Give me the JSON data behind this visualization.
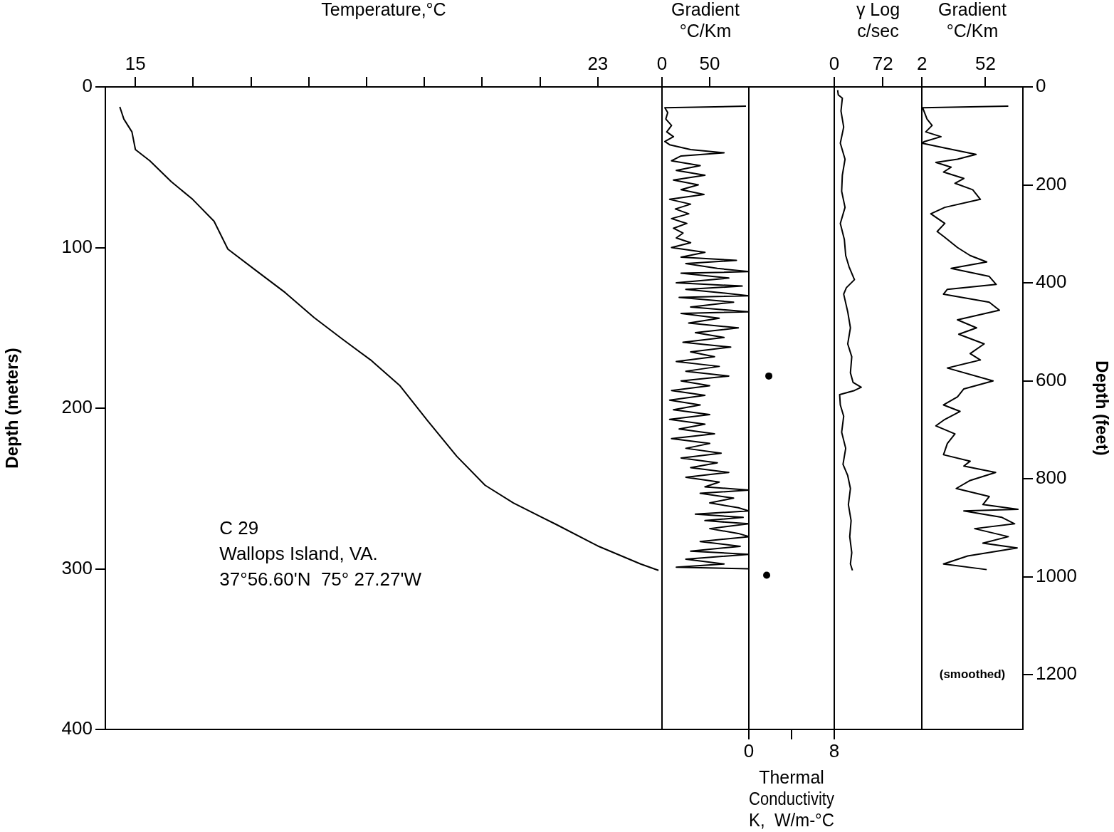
{
  "chart_data": [
    {
      "type": "line",
      "xlabel": "Temperature,°C",
      "ylabel": "Depth (meters)",
      "xlim": [
        14.48,
        24.11
      ],
      "xticks": [
        15,
        {
          "value": 16,
          "label": null
        },
        {
          "value": 17,
          "label": null
        },
        {
          "value": 18,
          "label": null
        },
        {
          "value": 19,
          "label": null
        },
        {
          "value": 20,
          "label": null
        },
        {
          "value": 21,
          "label": null
        },
        {
          "value": 22,
          "label": null
        },
        23
      ],
      "ylim": [
        400,
        0
      ],
      "yticks": [
        0,
        100,
        200,
        300,
        400
      ],
      "annotations": [
        "C 29",
        "Wallops Island, VA.",
        "37°56.60'N  75° 27.27'W"
      ],
      "series": [
        {
          "color": "#000000",
          "x": [
            14.73,
            14.8,
            14.94,
            15.0,
            15.25,
            15.62,
            15.99,
            16.36,
            16.6,
            17.1,
            17.59,
            18.09,
            18.58,
            19.07,
            19.57,
            20.06,
            20.56,
            21.05,
            21.54,
            22.28,
            23.0,
            23.74,
            24.05
          ],
          "values": [
            12.4,
            20,
            28,
            39,
            46,
            59,
            70,
            83.6,
            101,
            114.7,
            128,
            143.6,
            157,
            170,
            185.8,
            208,
            230,
            248,
            259,
            272.4,
            285.8,
            297,
            301
          ]
        }
      ]
    },
    {
      "type": "line",
      "xlabel": "Gradient\n°C/Km",
      "xlim": [
        0,
        91
      ],
      "xticks": [
        0,
        50
      ],
      "ylim": [
        400,
        0
      ],
      "tick_labels": "x",
      "series": [
        {
          "color": "#000000",
          "x": [
            88,
            3,
            6,
            4,
            10,
            5,
            12,
            3,
            8,
            30,
            65,
            20,
            10,
            40,
            15,
            45,
            12,
            38,
            20,
            44,
            8,
            30,
            14,
            28,
            10,
            26,
            12,
            22,
            15,
            30,
            10,
            45,
            20,
            78,
            25,
            58,
            91,
            20,
            70,
            15,
            84,
            25,
            60,
            91,
            18,
            75,
            30,
            91,
            20,
            60,
            28,
            80,
            35,
            65,
            22,
            72,
            30,
            55,
            15,
            60,
            25,
            70,
            20,
            50,
            10,
            45,
            8,
            40,
            12,
            50,
            8,
            45,
            18,
            55,
            10,
            50,
            25,
            62,
            20,
            58,
            30,
            70,
            25,
            60,
            45,
            91,
            40,
            75,
            50,
            80,
            91,
            35,
            85,
            45,
            91,
            50,
            80,
            91,
            40,
            82,
            30,
            91,
            25,
            65,
            15,
            91
          ],
          "values": [
            12,
            13,
            16,
            20,
            24,
            28,
            31,
            34,
            36,
            39,
            41,
            43,
            46,
            49,
            52,
            55,
            58,
            61,
            64,
            67,
            70,
            73,
            76,
            79,
            82,
            85,
            88,
            91,
            94,
            97,
            100,
            103,
            106,
            108,
            110,
            113,
            115,
            116,
            119,
            122,
            124,
            126,
            128,
            130,
            131,
            134,
            137,
            140,
            141,
            144,
            147,
            150,
            153,
            156,
            159,
            162,
            165,
            168,
            171,
            174,
            177,
            180,
            183,
            186,
            189,
            192,
            195,
            198,
            201,
            204,
            207,
            210,
            213,
            216,
            219,
            222,
            225,
            228,
            231,
            234,
            237,
            240,
            243,
            246,
            249,
            251,
            253,
            256,
            259,
            262,
            264,
            266,
            268,
            270,
            272,
            275,
            278,
            280,
            283,
            286,
            289,
            291,
            294,
            297,
            299,
            300
          ]
        }
      ]
    },
    {
      "type": "scatter",
      "xlabel": "Thermal\nConductivity\nK,  W/m-°C",
      "xlim": [
        0,
        8
      ],
      "xticks": [
        0,
        {
          "value": 4,
          "label": null
        },
        8
      ],
      "ylim": [
        400,
        0
      ],
      "tick_labels": "x",
      "marker": "circle",
      "series": [
        {
          "color": "#000000",
          "x": [
            1.87,
            1.67
          ],
          "values": [
            180,
            304
          ]
        }
      ]
    },
    {
      "type": "line",
      "xlabel": "γ Log\nc/sec",
      "xlim": [
        0,
        130
      ],
      "xticks": [
        0,
        72
      ],
      "ylim": [
        400,
        0
      ],
      "tick_labels": "x",
      "series": [
        {
          "color": "#000000",
          "x": [
            5,
            6,
            12,
            10,
            14,
            9,
            16,
            12,
            11,
            16,
            9,
            15,
            17,
            22,
            30,
            18,
            14,
            20,
            24,
            20,
            26,
            24,
            28,
            40,
            30,
            8,
            9,
            14,
            11,
            17,
            13,
            20,
            24,
            21,
            25,
            23,
            26,
            24,
            27
          ],
          "values": [
            2,
            5,
            7,
            15,
            25,
            35,
            45,
            55,
            65,
            75,
            85,
            95,
            105,
            112,
            120,
            125,
            129,
            140,
            150,
            160,
            168,
            178,
            184,
            187,
            189,
            191.6,
            198,
            205,
            215,
            225,
            235,
            242,
            250,
            260,
            270,
            280,
            290,
            297,
            301
          ]
        }
      ]
    },
    {
      "type": "line",
      "xlabel": "Gradient\n°C/Km",
      "xlim": [
        1.9,
        81.5
      ],
      "xticks": [
        2,
        52
      ],
      "ylim": [
        400,
        0
      ],
      "y2label": "Depth (feet)",
      "y2lim": [
        1312,
        0
      ],
      "y2ticks": [
        0,
        200,
        400,
        600,
        800,
        1000,
        1200
      ],
      "annotations": [
        "(smoothed)"
      ],
      "series": [
        {
          "color": "#000000",
          "x": [
            70,
            2.6,
            6,
            10,
            5,
            17,
            4,
            2,
            20,
            44.6,
            30,
            13,
            25,
            19,
            35,
            28,
            42,
            48,
            20,
            9,
            20,
            14,
            19,
            30,
            40,
            53,
            25,
            55,
            60.5,
            22,
            19,
            55,
            63,
            30,
            45,
            31,
            51,
            40,
            48,
            22,
            58,
            35,
            30,
            19,
            32,
            20,
            13,
            28,
            22,
            19,
            40,
            35,
            60,
            40,
            29,
            55,
            50,
            77.6,
            35,
            65,
            75,
            43.5,
            70,
            50,
            77,
            38,
            19,
            53
          ],
          "values": [
            12,
            13,
            20,
            24,
            28,
            31,
            34,
            35,
            38,
            42,
            45,
            47,
            50,
            53,
            57,
            60,
            64,
            70,
            75,
            79,
            85,
            90,
            93,
            100,
            105,
            109,
            113,
            118,
            123,
            126,
            129,
            134,
            139,
            145,
            150,
            154,
            160,
            166,
            170,
            175,
            183,
            188,
            193,
            198,
            202,
            207,
            211,
            216,
            222,
            229,
            233,
            236,
            240,
            245,
            250,
            255,
            260,
            263,
            264,
            268,
            272,
            275,
            280,
            284,
            287,
            292,
            297,
            300.5
          ]
        }
      ]
    }
  ]
}
